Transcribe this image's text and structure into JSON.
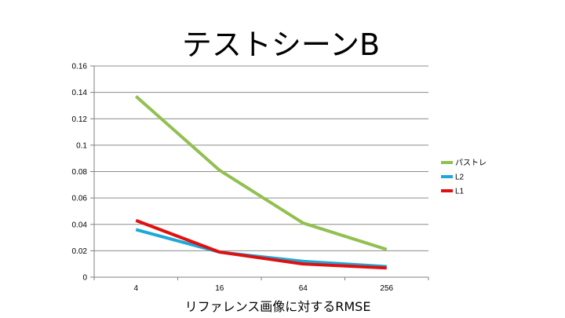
{
  "chart_data": {
    "type": "line",
    "title": "テストシーンB",
    "xlabel": "リファレンス画像に対するRMSE",
    "ylabel": "",
    "categories": [
      "4",
      "16",
      "64",
      "256"
    ],
    "ylim": [
      0,
      0.16
    ],
    "yticks": [
      "0",
      "0.02",
      "0.04",
      "0.06",
      "0.08",
      "0.1",
      "0.12",
      "0.14",
      "0.16"
    ],
    "grid": true,
    "legend_position": "right",
    "series": [
      {
        "name": "パストレ",
        "color": "#92c050",
        "values": [
          0.137,
          0.081,
          0.041,
          0.021
        ]
      },
      {
        "name": "L2",
        "color": "#1ea8d8",
        "values": [
          0.036,
          0.019,
          0.012,
          0.008
        ]
      },
      {
        "name": "L1",
        "color": "#e01010",
        "values": [
          0.043,
          0.019,
          0.01,
          0.007
        ]
      }
    ]
  }
}
